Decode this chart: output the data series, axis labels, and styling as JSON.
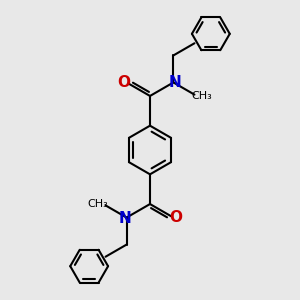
{
  "background_color": "#e8e8e8",
  "bond_color": "#000000",
  "N_color": "#0000cc",
  "O_color": "#cc0000",
  "lw": 1.5,
  "figsize": [
    3.0,
    3.0
  ],
  "dpi": 100,
  "xlim": [
    -3.5,
    3.5
  ],
  "ylim": [
    -5.5,
    5.5
  ]
}
